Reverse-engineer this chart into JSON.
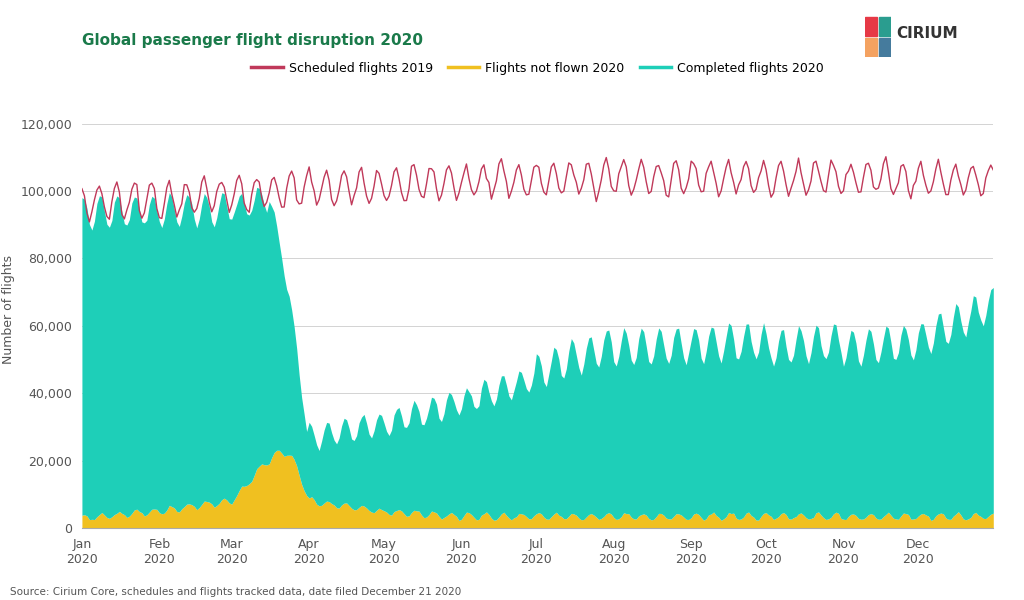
{
  "title": "Global passenger flight disruption 2020",
  "title_color": "#1a7a4a",
  "ylabel": "Number of flights",
  "source_text": "Source: Cirium Core, schedules and flights tracked data, date filed December 21 2020",
  "legend_labels": [
    "Scheduled flights 2019",
    "Flights not flown 2020",
    "Completed flights 2020"
  ],
  "scheduled_color": "#c0395a",
  "not_flown_color": "#f0c020",
  "completed_color": "#1ecfb8",
  "background_color": "#ffffff",
  "ylim": [
    0,
    130000
  ],
  "yticks": [
    0,
    20000,
    40000,
    60000,
    80000,
    100000,
    120000
  ],
  "grid_color": "#cccccc",
  "cirium_logo_colors": [
    "#e63946",
    "#2a9d8f",
    "#f4a261",
    "#457b9d"
  ]
}
